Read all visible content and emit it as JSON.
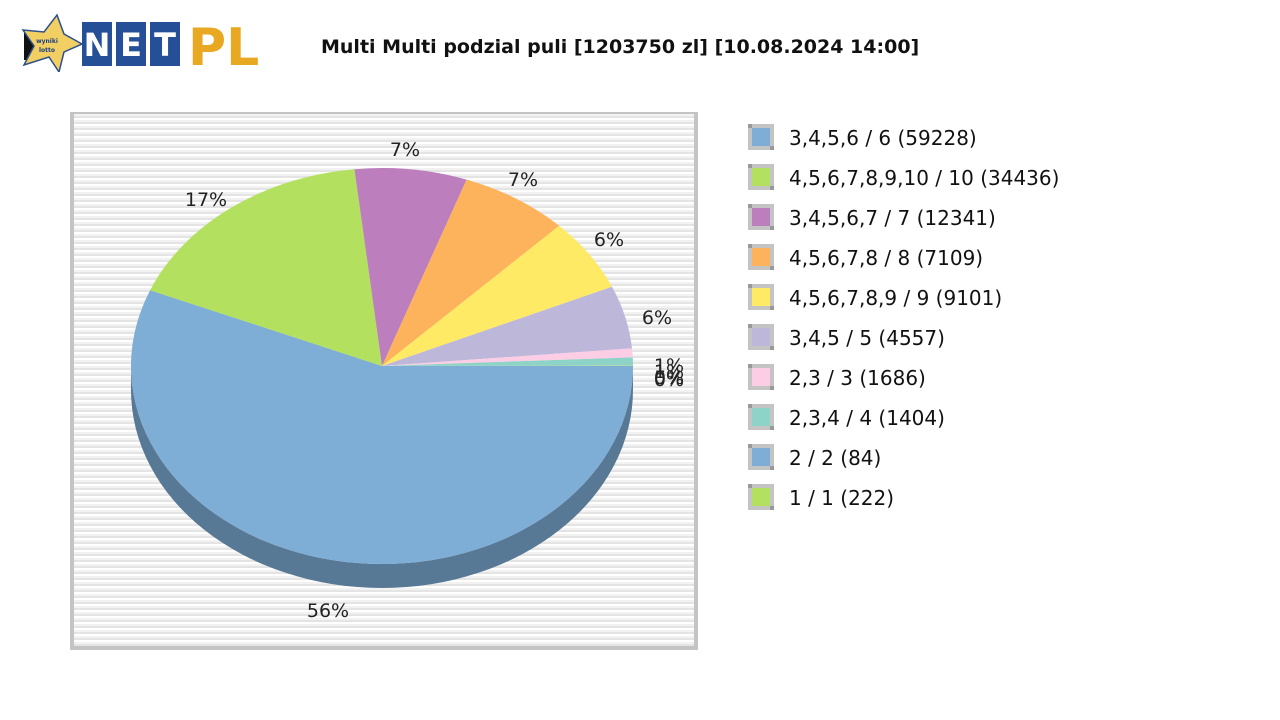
{
  "header": {
    "logo_text_net": "NET",
    "logo_text_pl": "PL",
    "logo_badge_lines": [
      "wyniki",
      "lotto"
    ],
    "title": "Multi Multi podzial puli [1203750 zl] [10.08.2024 14:00]"
  },
  "legend": {
    "items": [
      {
        "label": "3,4,5,6 / 6 (59228)",
        "color": "#7eadd5"
      },
      {
        "label": "4,5,6,7,8,9,10 / 10 (34436)",
        "color": "#b3e05e"
      },
      {
        "label": "3,4,5,6,7 / 7 (12341)",
        "color": "#bc7ebd"
      },
      {
        "label": "4,5,6,7,8 / 8 (7109)",
        "color": "#fdb35b"
      },
      {
        "label": "4,5,6,7,8,9 / 9 (9101)",
        "color": "#feea65"
      },
      {
        "label": "3,4,5 / 5 (4557)",
        "color": "#bdb8da"
      },
      {
        "label": "2,3 / 3 (1686)",
        "color": "#fccde5"
      },
      {
        "label": "2,3,4 / 4 (1404)",
        "color": "#8dd3c7"
      },
      {
        "label": "2 / 2 (84)",
        "color": "#7eadd5"
      },
      {
        "label": "1 / 1 (222)",
        "color": "#b3e05e"
      }
    ]
  },
  "chart_data": {
    "type": "pie",
    "title": "Multi Multi podzial puli [1203750 zl] [10.08.2024 14:00]",
    "style": "3d",
    "categories": [
      "3,4,5,6 / 6 (59228)",
      "4,5,6,7,8,9,10 / 10 (34436)",
      "3,4,5,6,7 / 7 (12341)",
      "4,5,6,7,8 / 8 (7109)",
      "4,5,6,7,8,9 / 9 (9101)",
      "3,4,5 / 5 (4557)",
      "2,3 / 3 (1686)",
      "2,3,4 / 4 (1404)",
      "2 / 2 (84)",
      "1 / 1 (222)"
    ],
    "values": [
      56,
      17,
      7,
      7,
      6,
      6,
      1,
      1,
      0,
      0
    ],
    "value_labels": [
      "56%",
      "17%",
      "7%",
      "7%",
      "6%",
      "6%",
      "1%",
      "1%",
      "0%",
      "0%"
    ],
    "colors": [
      "#7eadd5",
      "#b3e05e",
      "#bc7ebd",
      "#fdb35b",
      "#feea65",
      "#bdb8da",
      "#fccde5",
      "#8dd3c7",
      "#7eadd5",
      "#b3e05e"
    ],
    "slice_degrees": [
      202.5,
      61.2,
      26.0,
      25.2,
      21.5,
      18.5,
      2.6,
      2.3,
      0.1,
      0.1
    ],
    "legend_position": "right"
  }
}
